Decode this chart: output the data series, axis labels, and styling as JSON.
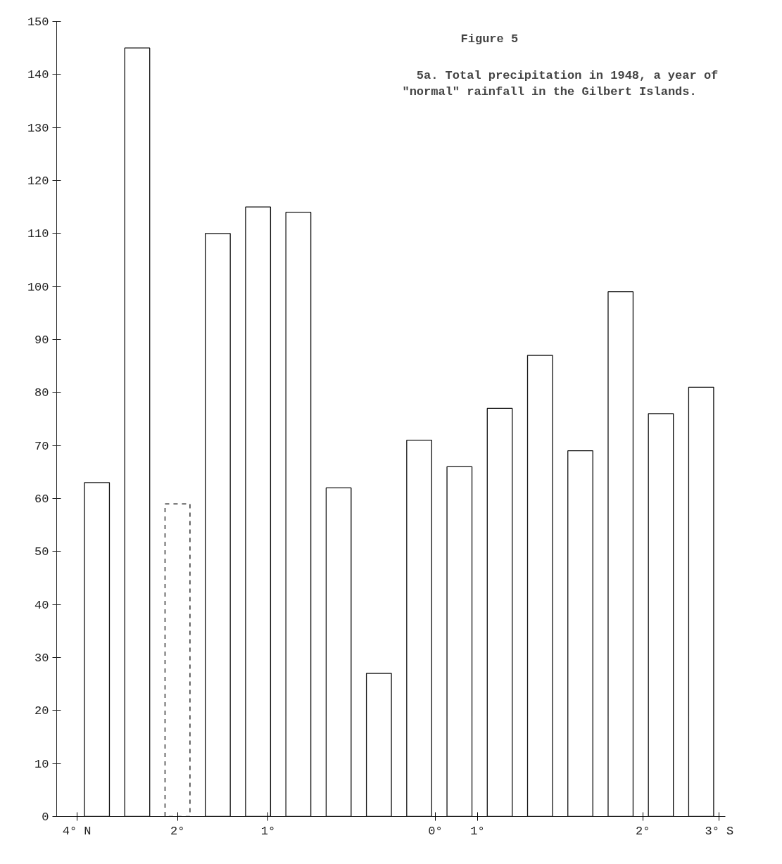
{
  "chart_data": {
    "type": "bar",
    "title": "Figure 5",
    "subtitle": "5a.  Total precipitation in 1948, a year of\n    \"normal\" rainfall in the Gilbert Islands.",
    "categories": [
      null,
      null,
      null,
      null,
      null,
      null,
      null,
      null,
      null,
      null,
      null,
      null,
      null,
      null,
      null,
      null
    ],
    "annotations": [
      "4° N",
      "2°",
      "1°",
      "0°",
      "1°",
      "2°",
      "3° S"
    ],
    "series": [
      {
        "color": "#ffffff",
        "values": [
          63,
          145,
          null,
          110,
          115,
          114,
          62,
          27,
          71,
          66,
          77,
          87,
          69,
          99,
          76,
          81
        ]
      },
      {
        "color": "#ffffff",
        "line_style": "dashed",
        "values": [
          null,
          null,
          59,
          null,
          null,
          null,
          null,
          null,
          null,
          null,
          null,
          null,
          null,
          null,
          null,
          null
        ]
      }
    ],
    "ylim": [
      0,
      150
    ],
    "yticks": [
      0,
      10,
      20,
      30,
      40,
      50,
      60,
      70,
      80,
      90,
      100,
      110,
      120,
      130,
      140,
      150
    ],
    "grid": false
  }
}
